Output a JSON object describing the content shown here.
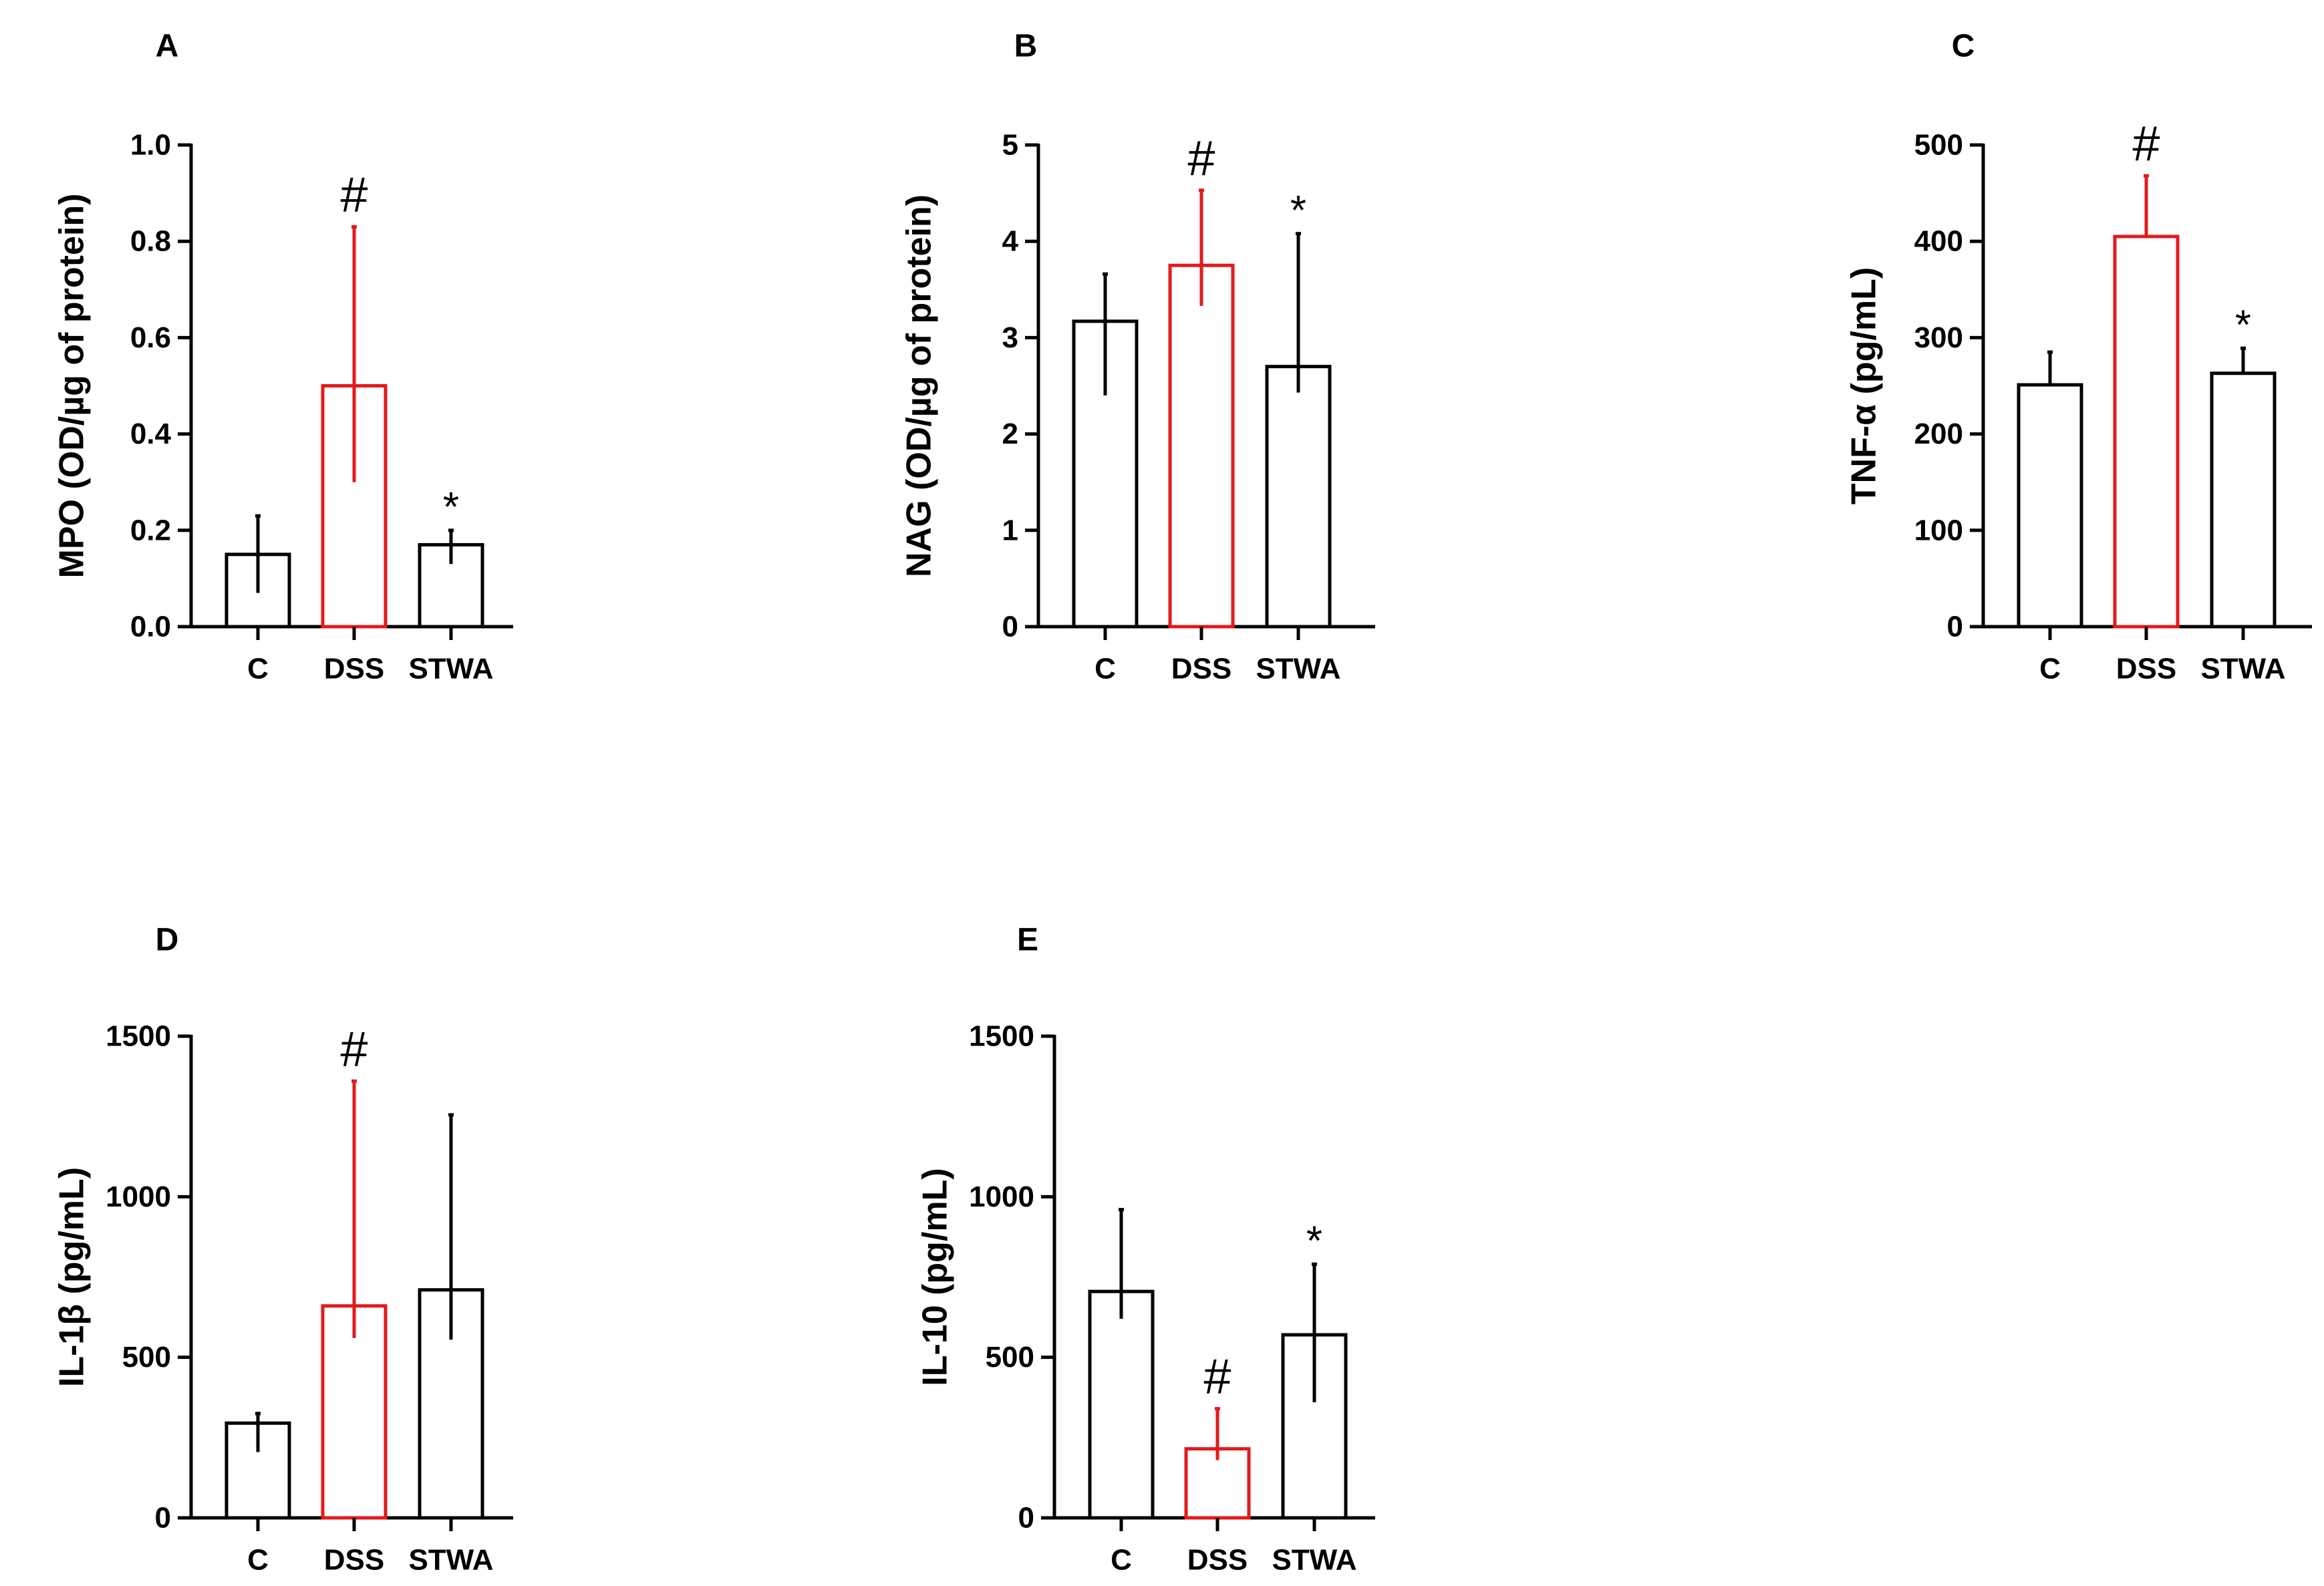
{
  "colors": {
    "default": "#000000",
    "highlight": "#e31a1c"
  },
  "chart_data": [
    {
      "panel": "A",
      "type": "bar",
      "categories": [
        "C",
        "DSS",
        "STWA"
      ],
      "values": [
        0.15,
        0.5,
        0.17
      ],
      "error_high": [
        0.23,
        0.83,
        0.2
      ],
      "error_low": [
        0.07,
        0.3,
        0.13
      ],
      "highlight_index": 1,
      "ylabel": "MPO (OD/µg of protein)",
      "ylim": [
        0,
        1.0
      ],
      "ticks": [
        0,
        0.2,
        0.4,
        0.6,
        0.8,
        1.0
      ],
      "tick_labels": [
        "0.0",
        "0.2",
        "0.4",
        "0.6",
        "0.8",
        "1.0"
      ],
      "annotations": [
        "",
        "#",
        "*"
      ]
    },
    {
      "panel": "B",
      "type": "bar",
      "categories": [
        "C",
        "DSS",
        "STWA"
      ],
      "values": [
        3.17,
        3.75,
        2.7
      ],
      "error_high": [
        3.66,
        4.53,
        4.08
      ],
      "error_low": [
        2.4,
        3.33,
        2.43
      ],
      "highlight_index": 1,
      "ylabel": "NAG (OD/µg of protein)",
      "ylim": [
        0,
        5
      ],
      "ticks": [
        0,
        1,
        2,
        3,
        4,
        5
      ],
      "tick_labels": [
        "0",
        "1",
        "2",
        "3",
        "4",
        "5"
      ],
      "annotations": [
        "",
        "#",
        "*"
      ]
    },
    {
      "panel": "C",
      "type": "bar",
      "categories": [
        "C",
        "DSS",
        "STWA"
      ],
      "values": [
        251,
        405,
        263
      ],
      "error_high": [
        285,
        468,
        289
      ],
      "error_low": [
        251,
        405,
        263
      ],
      "highlight_index": 1,
      "ylabel": "TNF-α (pg/mL)",
      "ylim": [
        0,
        500
      ],
      "ticks": [
        0,
        100,
        200,
        300,
        400,
        500
      ],
      "tick_labels": [
        "0",
        "100",
        "200",
        "300",
        "400",
        "500"
      ],
      "annotations": [
        "",
        "#",
        "*"
      ]
    },
    {
      "panel": "D",
      "type": "bar",
      "categories": [
        "C",
        "DSS",
        "STWA"
      ],
      "values": [
        295,
        660,
        710
      ],
      "error_high": [
        325,
        1360,
        1255
      ],
      "error_low": [
        205,
        560,
        555
      ],
      "highlight_index": 1,
      "ylabel": "IL-1β (pg/mL)",
      "ylim": [
        0,
        1500
      ],
      "ticks": [
        0,
        500,
        1000,
        1500
      ],
      "tick_labels": [
        "0",
        "500",
        "1000",
        "1500"
      ],
      "annotations": [
        "",
        "#",
        ""
      ]
    },
    {
      "panel": "E",
      "type": "bar",
      "categories": [
        "C",
        "DSS",
        "STWA"
      ],
      "values": [
        705,
        215,
        570
      ],
      "error_high": [
        960,
        340,
        790
      ],
      "error_low": [
        620,
        180,
        360
      ],
      "highlight_index": 1,
      "ylabel": "IL-10 (pg/mL)",
      "ylim": [
        0,
        1500
      ],
      "ticks": [
        0,
        500,
        1000,
        1500
      ],
      "tick_labels": [
        "0",
        "500",
        "1000",
        "1500"
      ],
      "annotations": [
        "",
        "#",
        "*"
      ]
    }
  ]
}
